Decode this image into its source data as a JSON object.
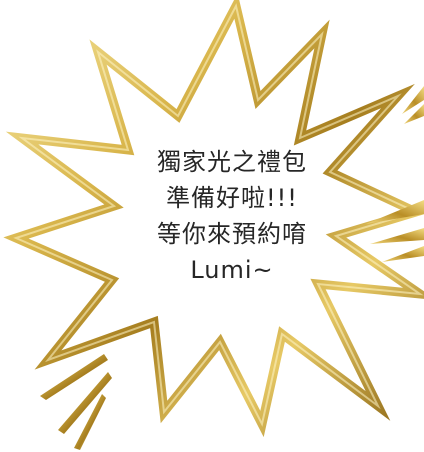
{
  "message": {
    "lines": [
      "獨家光之禮包",
      "準備好啦!!!",
      "等你來預約唷",
      "Lumi~"
    ]
  },
  "colors": {
    "gold_light": "#f4e08e",
    "gold_mid": "#d4b24a",
    "gold_dark": "#8f6b14",
    "text": "#262626",
    "background": "#ffffff"
  },
  "decoration": {
    "shape": "starburst-speech-bubble",
    "style": "gold-metallic-outline"
  }
}
